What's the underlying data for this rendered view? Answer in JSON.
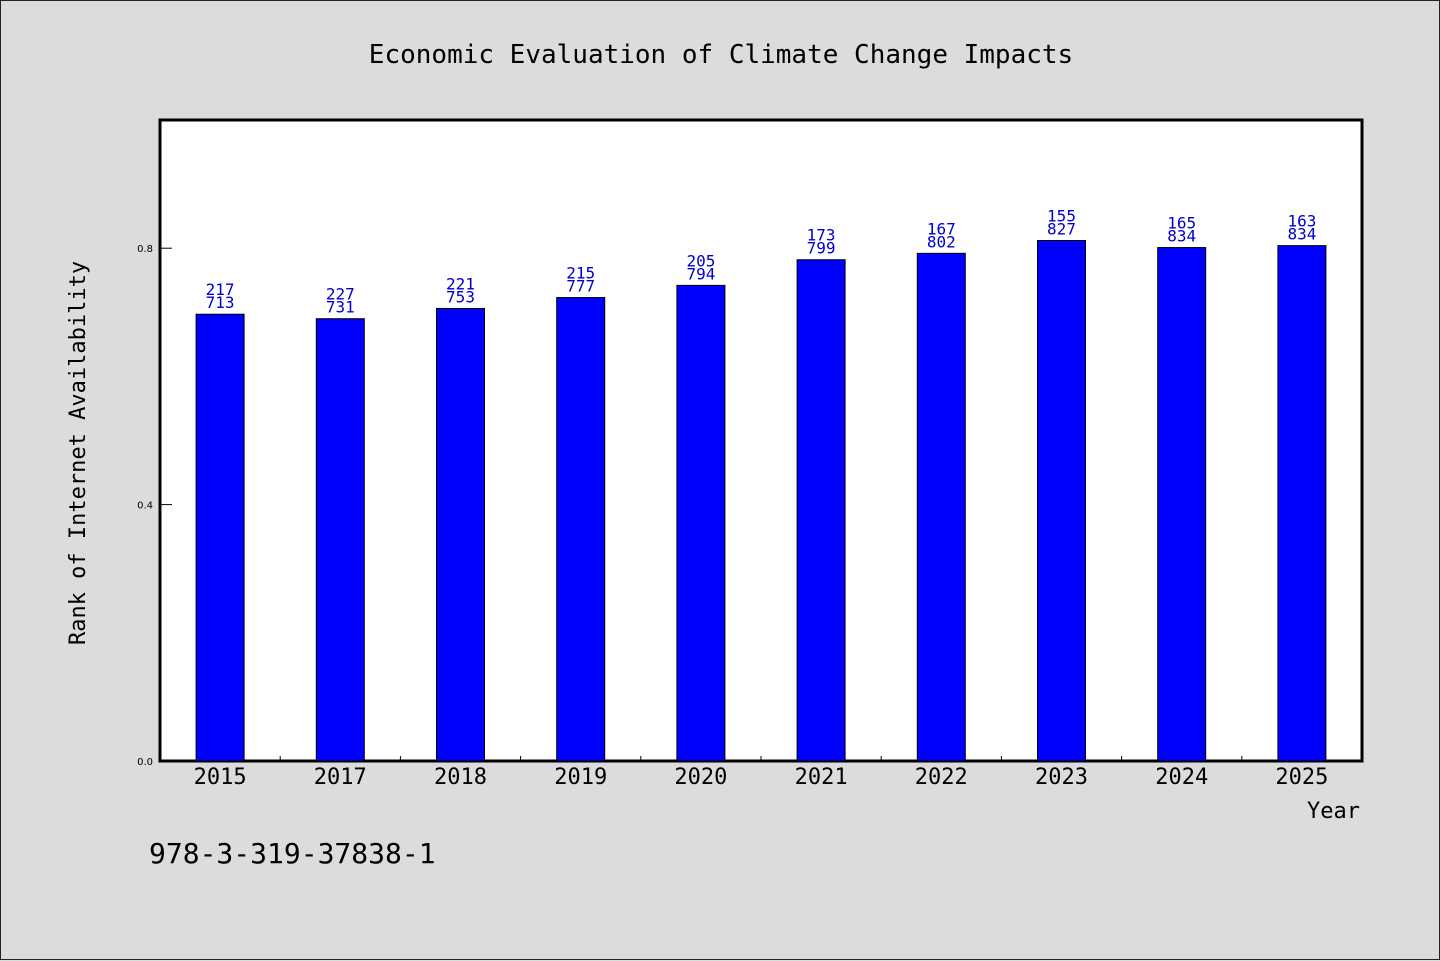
{
  "chart_data": {
    "type": "bar",
    "title": "Economic Evaluation of Climate Change Impacts",
    "xlabel": "Year",
    "ylabel": "Rank of Internet Availability",
    "categories": [
      "2015",
      "2017",
      "2018",
      "2019",
      "2020",
      "2021",
      "2022",
      "2023",
      "2024",
      "2025"
    ],
    "values": [
      0.697,
      0.69,
      0.706,
      0.723,
      0.742,
      0.782,
      0.792,
      0.812,
      0.801,
      0.804
    ],
    "labels_top": [
      "217",
      "227",
      "221",
      "215",
      "205",
      "173",
      "167",
      "155",
      "165",
      "163"
    ],
    "labels_bottom": [
      "713",
      "731",
      "753",
      "777",
      "794",
      "799",
      "802",
      "827",
      "834",
      "834"
    ],
    "yticks": [
      "0.0",
      "0.4",
      "0.8"
    ],
    "ylim": [
      0,
      1.0
    ],
    "grid": false,
    "bar_color": "#0000ff",
    "label_color": "#0000cc"
  },
  "footer": {
    "isbn": "978-3-319-37838-1"
  }
}
